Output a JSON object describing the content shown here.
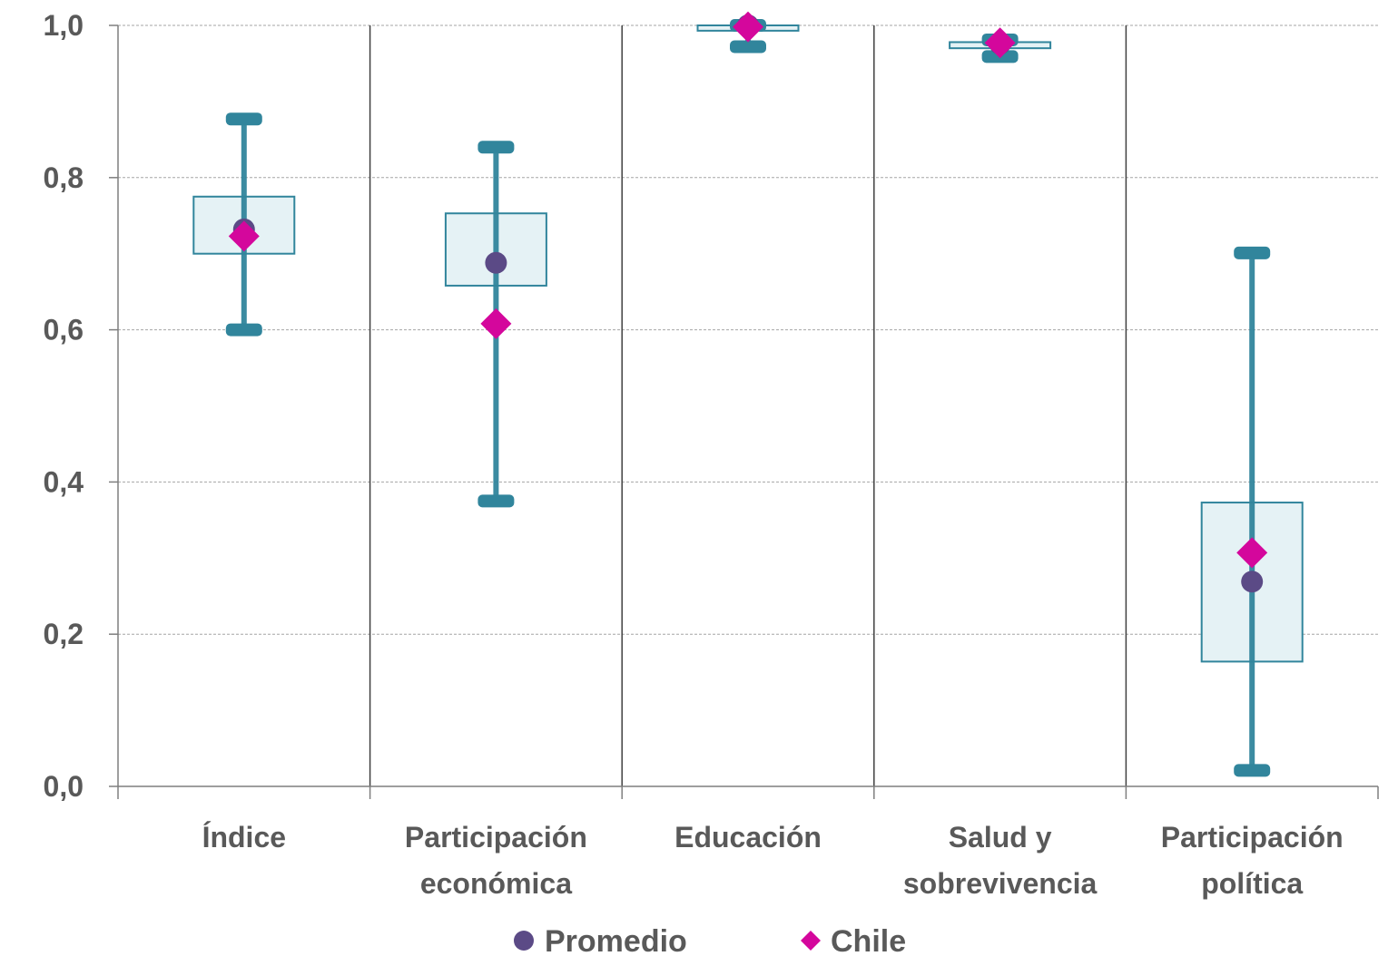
{
  "chart_data": {
    "type": "box",
    "categories": [
      [
        "Índice"
      ],
      [
        "Participación",
        "económica"
      ],
      [
        "Educación"
      ],
      [
        "Salud y",
        "sobrevivencia"
      ],
      [
        "Participación",
        "política"
      ]
    ],
    "y_ticks": [
      "0,0",
      "0,2",
      "0,4",
      "0,6",
      "0,8",
      "1,0"
    ],
    "ylim": [
      0,
      1
    ],
    "grid": true,
    "legend_placement": "bottom",
    "boxes": [
      {
        "min": 0.6,
        "q1": 0.7,
        "q3": 0.775,
        "max": 0.877
      },
      {
        "min": 0.375,
        "q1": 0.658,
        "q3": 0.753,
        "max": 0.84
      },
      {
        "min": 0.972,
        "q1": 0.993,
        "q3": 1.0,
        "max": 1.0
      },
      {
        "min": 0.959,
        "q1": 0.97,
        "q3": 0.978,
        "max": 0.981
      },
      {
        "min": 0.021,
        "q1": 0.164,
        "q3": 0.373,
        "max": 0.701
      }
    ],
    "series": [
      {
        "name": "Promedio",
        "marker": "circle",
        "color": "#5b4a86",
        "values": [
          0.732,
          0.688,
          1.0,
          0.976,
          0.269
        ]
      },
      {
        "name": "Chile",
        "marker": "diamond",
        "color": "#d4079c",
        "values": [
          0.723,
          0.608,
          0.998,
          0.977,
          0.307
        ]
      }
    ],
    "colors": {
      "whisker": "#31859c",
      "box_fill": "#e5f2f5",
      "box_stroke": "#31859c",
      "grid": "#a6a6a6",
      "separator": "#404040",
      "text": "#595959"
    }
  }
}
